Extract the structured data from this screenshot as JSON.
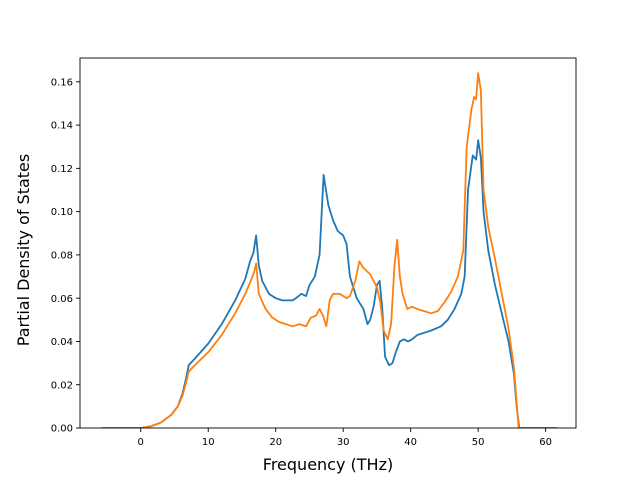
{
  "chart_data": {
    "type": "line",
    "xlabel": "Frequency (THz)",
    "ylabel": "Partial Density of States",
    "xlim": [
      -9.0,
      64.5
    ],
    "ylim": [
      0.0,
      0.171
    ],
    "xticks": [
      0,
      10,
      20,
      30,
      40,
      50,
      60
    ],
    "yticks": [
      0.0,
      0.02,
      0.04,
      0.06,
      0.08,
      0.1,
      0.12,
      0.14,
      0.16
    ],
    "xtick_labels": [
      "0",
      "10",
      "20",
      "30",
      "40",
      "50",
      "60"
    ],
    "ytick_labels": [
      "0.00",
      "0.02",
      "0.04",
      "0.06",
      "0.08",
      "0.10",
      "0.12",
      "0.14",
      "0.16"
    ],
    "grid": false,
    "legend": "none",
    "series": [
      {
        "color": "#1f77b4",
        "points": [
          [
            -5.6,
            0.0
          ],
          [
            0.0,
            0.0
          ],
          [
            1.5,
            0.0008
          ],
          [
            3.0,
            0.0025
          ],
          [
            4.5,
            0.006
          ],
          [
            5.5,
            0.01
          ],
          [
            6.2,
            0.016
          ],
          [
            6.8,
            0.024
          ],
          [
            7.1,
            0.029
          ],
          [
            8.0,
            0.032
          ],
          [
            10.0,
            0.039
          ],
          [
            12.0,
            0.048
          ],
          [
            14.0,
            0.059
          ],
          [
            15.5,
            0.069
          ],
          [
            16.2,
            0.077
          ],
          [
            16.7,
            0.081
          ],
          [
            17.1,
            0.089
          ],
          [
            17.5,
            0.075
          ],
          [
            18.0,
            0.068
          ],
          [
            19.0,
            0.062
          ],
          [
            20.0,
            0.06
          ],
          [
            21.0,
            0.059
          ],
          [
            22.5,
            0.059
          ],
          [
            23.0,
            0.06
          ],
          [
            23.8,
            0.062
          ],
          [
            24.5,
            0.061
          ],
          [
            25.0,
            0.066
          ],
          [
            25.8,
            0.07
          ],
          [
            26.5,
            0.08
          ],
          [
            27.1,
            0.117
          ],
          [
            27.8,
            0.103
          ],
          [
            28.5,
            0.096
          ],
          [
            29.2,
            0.091
          ],
          [
            30.0,
            0.089
          ],
          [
            30.5,
            0.085
          ],
          [
            31.0,
            0.07
          ],
          [
            32.0,
            0.06
          ],
          [
            33.0,
            0.055
          ],
          [
            33.6,
            0.048
          ],
          [
            34.0,
            0.05
          ],
          [
            34.5,
            0.056
          ],
          [
            35.0,
            0.066
          ],
          [
            35.4,
            0.068
          ],
          [
            35.8,
            0.055
          ],
          [
            36.2,
            0.033
          ],
          [
            36.8,
            0.029
          ],
          [
            37.3,
            0.03
          ],
          [
            37.8,
            0.035
          ],
          [
            38.4,
            0.04
          ],
          [
            39.0,
            0.041
          ],
          [
            39.6,
            0.04
          ],
          [
            40.2,
            0.041
          ],
          [
            41.0,
            0.043
          ],
          [
            42.0,
            0.044
          ],
          [
            43.0,
            0.045
          ],
          [
            44.5,
            0.047
          ],
          [
            45.5,
            0.05
          ],
          [
            46.5,
            0.055
          ],
          [
            47.5,
            0.062
          ],
          [
            48.0,
            0.07
          ],
          [
            48.5,
            0.11
          ],
          [
            49.2,
            0.126
          ],
          [
            49.7,
            0.124
          ],
          [
            50.0,
            0.133
          ],
          [
            50.4,
            0.125
          ],
          [
            50.8,
            0.1
          ],
          [
            51.5,
            0.082
          ],
          [
            52.5,
            0.066
          ],
          [
            53.5,
            0.053
          ],
          [
            54.5,
            0.04
          ],
          [
            55.3,
            0.025
          ],
          [
            55.7,
            0.01
          ],
          [
            56.1,
            0.0
          ],
          [
            61.5,
            0.0
          ]
        ]
      },
      {
        "color": "#ff7f0e",
        "points": [
          [
            -5.6,
            0.0
          ],
          [
            0.0,
            0.0
          ],
          [
            1.5,
            0.0008
          ],
          [
            3.0,
            0.0025
          ],
          [
            4.5,
            0.006
          ],
          [
            5.5,
            0.01
          ],
          [
            6.2,
            0.015
          ],
          [
            6.8,
            0.022
          ],
          [
            7.1,
            0.026
          ],
          [
            8.0,
            0.029
          ],
          [
            10.0,
            0.035
          ],
          [
            12.0,
            0.043
          ],
          [
            14.0,
            0.053
          ],
          [
            15.5,
            0.062
          ],
          [
            16.3,
            0.068
          ],
          [
            16.8,
            0.072
          ],
          [
            17.1,
            0.076
          ],
          [
            17.5,
            0.062
          ],
          [
            18.5,
            0.055
          ],
          [
            19.5,
            0.051
          ],
          [
            20.5,
            0.049
          ],
          [
            21.5,
            0.048
          ],
          [
            22.5,
            0.047
          ],
          [
            23.5,
            0.048
          ],
          [
            24.5,
            0.047
          ],
          [
            25.2,
            0.051
          ],
          [
            26.0,
            0.052
          ],
          [
            26.5,
            0.055
          ],
          [
            27.0,
            0.052
          ],
          [
            27.5,
            0.047
          ],
          [
            28.0,
            0.059
          ],
          [
            28.5,
            0.062
          ],
          [
            29.5,
            0.062
          ],
          [
            30.5,
            0.06
          ],
          [
            31.0,
            0.061
          ],
          [
            31.8,
            0.068
          ],
          [
            32.4,
            0.077
          ],
          [
            33.0,
            0.074
          ],
          [
            34.0,
            0.071
          ],
          [
            35.0,
            0.065
          ],
          [
            35.5,
            0.058
          ],
          [
            36.0,
            0.045
          ],
          [
            36.6,
            0.041
          ],
          [
            37.1,
            0.048
          ],
          [
            37.6,
            0.075
          ],
          [
            38.0,
            0.087
          ],
          [
            38.4,
            0.07
          ],
          [
            38.8,
            0.062
          ],
          [
            39.5,
            0.055
          ],
          [
            40.2,
            0.056
          ],
          [
            41.0,
            0.055
          ],
          [
            42.0,
            0.054
          ],
          [
            43.0,
            0.053
          ],
          [
            44.0,
            0.054
          ],
          [
            45.0,
            0.058
          ],
          [
            46.0,
            0.063
          ],
          [
            47.0,
            0.07
          ],
          [
            47.8,
            0.082
          ],
          [
            48.3,
            0.13
          ],
          [
            49.0,
            0.147
          ],
          [
            49.4,
            0.153
          ],
          [
            49.7,
            0.152
          ],
          [
            50.0,
            0.164
          ],
          [
            50.4,
            0.156
          ],
          [
            50.8,
            0.11
          ],
          [
            51.5,
            0.093
          ],
          [
            52.5,
            0.078
          ],
          [
            53.5,
            0.062
          ],
          [
            54.5,
            0.046
          ],
          [
            55.3,
            0.028
          ],
          [
            55.7,
            0.012
          ],
          [
            56.0,
            0.0
          ],
          [
            61.5,
            0.0
          ]
        ]
      }
    ]
  }
}
